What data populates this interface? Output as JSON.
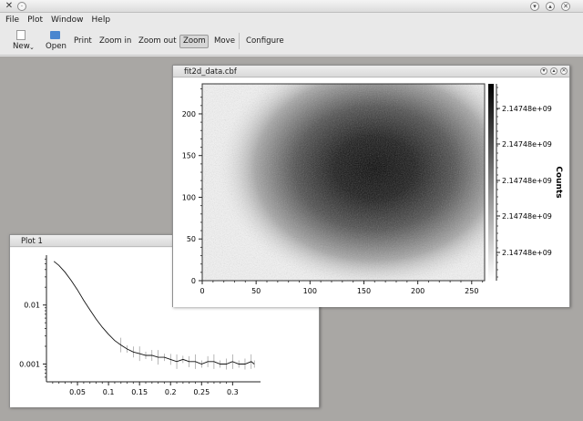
{
  "window": {
    "icons": {
      "app": "app-icon",
      "close": "close-icon",
      "minimize": "minimize-icon",
      "maximize": "maximize-icon"
    }
  },
  "menubar": [
    {
      "label": "File"
    },
    {
      "label": "Plot"
    },
    {
      "label": "Window"
    },
    {
      "label": "Help"
    }
  ],
  "toolbar": {
    "new_label": "New",
    "open_label": "Open",
    "print_label": "Print",
    "zoom_in_label": "Zoom in",
    "zoom_out_label": "Zoom out",
    "zoom_label": "Zoom",
    "move_label": "Move",
    "configure_label": "Configure",
    "active_tool": "Zoom"
  },
  "plot1": {
    "title": "Plot 1",
    "chart_data": {
      "type": "line",
      "yscale": "log",
      "xlim": [
        0.0,
        0.345
      ],
      "ylim": [
        0.0005,
        0.07
      ],
      "xticks": [
        "0.05",
        "0.1",
        "0.15",
        "0.2",
        "0.25",
        "0.3"
      ],
      "yticks": [
        "0.001",
        "0.01"
      ],
      "series": [
        {
          "x": [
            0.012,
            0.02,
            0.03,
            0.04,
            0.05,
            0.06,
            0.07,
            0.08,
            0.09,
            0.1,
            0.11,
            0.12,
            0.13,
            0.14,
            0.15,
            0.16,
            0.17,
            0.18,
            0.19,
            0.2,
            0.21,
            0.22,
            0.23,
            0.24,
            0.25,
            0.26,
            0.27,
            0.28,
            0.29,
            0.3,
            0.31,
            0.32,
            0.33,
            0.335
          ],
          "y": [
            0.055,
            0.047,
            0.036,
            0.026,
            0.018,
            0.012,
            0.0083,
            0.0058,
            0.0042,
            0.0032,
            0.0025,
            0.0021,
            0.0018,
            0.0016,
            0.0015,
            0.0014,
            0.0014,
            0.0013,
            0.0013,
            0.0012,
            0.0011,
            0.0012,
            0.0011,
            0.0011,
            0.001,
            0.0011,
            0.0011,
            0.001,
            0.001,
            0.0011,
            0.001,
            0.001,
            0.0011,
            0.001
          ]
        }
      ]
    }
  },
  "image_window": {
    "title": "fit2d_data.cbf",
    "chart_data": {
      "type": "heatmap",
      "xlim": [
        0,
        262
      ],
      "ylim": [
        0,
        236
      ],
      "xticks": [
        "0",
        "50",
        "100",
        "150",
        "200",
        "250"
      ],
      "yticks": [
        "0",
        "50",
        "100",
        "150",
        "200"
      ],
      "blob_center": [
        160,
        135
      ],
      "colormap": [
        "#ffffff",
        "#000000"
      ],
      "colorbar": {
        "label": "Counts",
        "ticks": [
          "2.14748e+09",
          "2.14748e+09",
          "2.14748e+09",
          "2.14748e+09",
          "2.14748e+09"
        ]
      }
    }
  }
}
